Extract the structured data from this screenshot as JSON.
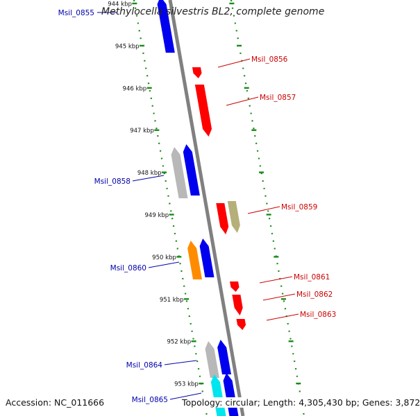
{
  "genome": {
    "organism": "Methylocella silvestris BL2",
    "suffix": ", complete genome",
    "accession_label": "Accession:",
    "accession": "NC_011666",
    "topology_text": "Topology: circular; Length: 4,305,430 bp; Genes: 3,872"
  },
  "colors": {
    "backbone": "#808080",
    "tick": "#1a8a1a",
    "forward_label": "#cc0000",
    "reverse_label": "#0000aa"
  },
  "ticks": [
    {
      "label": "944 kbp"
    },
    {
      "label": "945 kbp"
    },
    {
      "label": "946 kbp"
    },
    {
      "label": "947 kbp"
    },
    {
      "label": "948 kbp"
    },
    {
      "label": "949 kbp"
    },
    {
      "label": "950 kbp"
    },
    {
      "label": "951 kbp"
    },
    {
      "label": "952 kbp"
    },
    {
      "label": "953 kbp"
    }
  ],
  "genes": [
    {
      "id": "Msil_0855",
      "strand": "-",
      "color": "#0000ee",
      "labeled": true
    },
    {
      "id": "Msil_0856",
      "strand": "+",
      "color": "#ff0000",
      "labeled": true
    },
    {
      "id": "Msil_0857",
      "strand": "+",
      "color": "#ff0000",
      "labeled": true
    },
    {
      "id": "Msil_0858",
      "strand": "-",
      "color": "#0000ee",
      "labeled": true
    },
    {
      "id": "Msil_0858_gray",
      "strand": "-",
      "color": "#b8b8b8",
      "labeled": false
    },
    {
      "id": "Msil_0859",
      "strand": "+",
      "color": "#ff0000",
      "labeled": true
    },
    {
      "id": "Msil_0859_olive",
      "strand": "+",
      "color": "#b5b07a",
      "labeled": false
    },
    {
      "id": "Msil_0860",
      "strand": "-",
      "color": "#0000ee",
      "labeled": true
    },
    {
      "id": "Msil_0860_orange",
      "strand": "-",
      "color": "#ff8c00",
      "labeled": false
    },
    {
      "id": "Msil_0861",
      "strand": "+",
      "color": "#ff0000",
      "labeled": true
    },
    {
      "id": "Msil_0862",
      "strand": "+",
      "color": "#ff0000",
      "labeled": true
    },
    {
      "id": "Msil_0863",
      "strand": "+",
      "color": "#ff0000",
      "labeled": true
    },
    {
      "id": "Msil_0864",
      "strand": "-",
      "color": "#0000ee",
      "labeled": true
    },
    {
      "id": "Msil_0864_gray",
      "strand": "-",
      "color": "#b8b8b8",
      "labeled": false
    },
    {
      "id": "Msil_0865",
      "strand": "-",
      "color": "#0000ee",
      "labeled": true
    },
    {
      "id": "Msil_0865_cyan",
      "strand": "-",
      "color": "#00e5ee",
      "labeled": false
    }
  ]
}
